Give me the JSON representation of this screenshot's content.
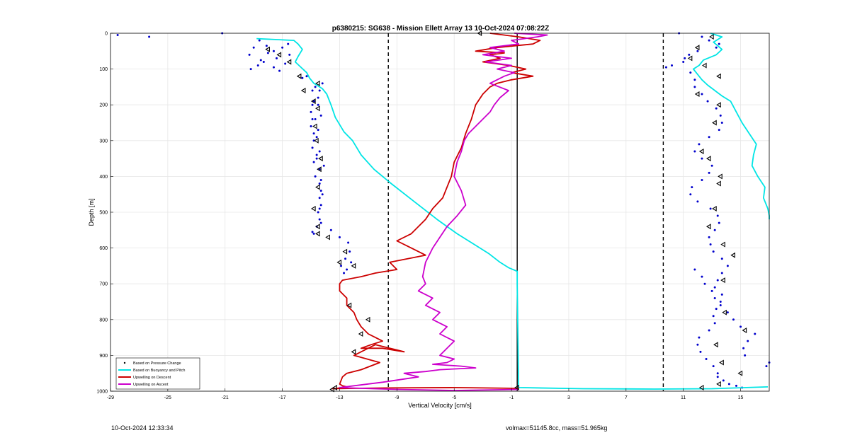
{
  "footer": {
    "timestamp": "10-Oct-2024 12:33:34",
    "vol_mass": "volmax=51145.8cc, mass=51.965kg"
  },
  "chart_data": {
    "type": "line",
    "title": "p6380215: SG638 - Mission Ellett Array 13 10-Oct-2024 07:08:22Z",
    "xlabel": "Vertical Velocity [cm/s]",
    "ylabel": "Depth [m]",
    "xlim": [
      -29,
      17
    ],
    "ylim": [
      0,
      1000
    ],
    "y_reversed": true,
    "grid": true,
    "xticks": [
      -29,
      -25,
      -21,
      -17,
      -13,
      -9,
      -5,
      -1,
      3,
      7,
      11,
      15
    ],
    "yticks": [
      0,
      100,
      200,
      300,
      400,
      500,
      600,
      700,
      800,
      900,
      1000
    ],
    "legend_position": "bottom-left",
    "vlines": [
      {
        "x": -9.6,
        "style": "dashed",
        "color": "#000000"
      },
      {
        "x": -0.6,
        "style": "solid",
        "color": "#000000"
      },
      {
        "x": 9.6,
        "style": "dashed",
        "color": "#000000"
      }
    ],
    "series": [
      {
        "name": "Based on Pressure Change",
        "kind": "markers",
        "color": "#0000cc",
        "groups": [
          {
            "x": [
              -28.5,
              -26.3,
              -21.2,
              -18.6,
              -19.0,
              -19.3,
              -18.5,
              -18.7,
              -19.2,
              -18.1,
              -18.0,
              -18.3,
              -17.6,
              -17.4,
              -17.6,
              -17.0,
              -16.5,
              -16.8,
              -17.2,
              -16.6,
              -15.6,
              -15.3,
              -14.7,
              -14.2,
              -14.4,
              -14.8,
              -14.5,
              -14.9,
              -15.0,
              -14.9,
              -15.0,
              -14.8,
              -14.8,
              -14.9,
              -14.6,
              -14.8,
              -14.4,
              -14.7,
              -14.4,
              -14.3,
              -14.4,
              -14.3,
              -14.5,
              -14.4,
              -14.6,
              -14.9,
              -14.5,
              -14.9,
              -14.7,
              -14.6,
              -14.4,
              -14.1,
              -14.3,
              -14.2,
              -14.4,
              -14.3,
              -14.3,
              -14.5,
              -14.6,
              -14.8,
              -13.6,
              -13.0,
              -12.4,
              -12.3,
              -12.6,
              -12.2,
              -12.9,
              -12.5,
              -12.7
            ],
            "y": [
              5,
              10,
              0,
              20,
              40,
              60,
              75,
              90,
              100,
              35,
              55,
              80,
              95,
              70,
              50,
              40,
              60,
              85,
              105,
              30,
              125,
              120,
              150,
              140,
              160,
              190,
              180,
              200,
              220,
              240,
              260,
              280,
              300,
              320,
              340,
              360,
              380,
              400,
              420,
              440,
              460,
              480,
              500,
              520,
              540,
              555,
              200,
              160,
              240,
              290,
              330,
              370,
              410,
              450,
              490,
              530,
              230,
              270,
              350,
              560,
              550,
              570,
              585,
              610,
              630,
              640,
              650,
              660,
              670
            ]
          }
        ]
      },
      {
        "name": "Pressure Change Right",
        "kind": "markers",
        "color": "#0000cc",
        "legend": false,
        "groups": [
          {
            "x": [
              10.7,
              12.3,
              12.8,
              13.5,
              13.3,
              12.0,
              11.4,
              11.1,
              11.0,
              10.2,
              9.8,
              11.5,
              11.8,
              11.8,
              12.3,
              12.7,
              13.3,
              13.6,
              13.7,
              13.5,
              12.8,
              12.1,
              11.8,
              12.3,
              13.0,
              12.8,
              12.3,
              11.6,
              11.5,
              12.0,
              12.9,
              13.4,
              13.5,
              13.2,
              12.8,
              12.9,
              13.1,
              13.7,
              14.1,
              13.7,
              13.4,
              13.2,
              13.7,
              13.6,
              13.3,
              13.1,
              13.2,
              12.8,
              12.1,
              12.0,
              12.2,
              12.6,
              13.1,
              13.4,
              13.4,
              13.8,
              14.2,
              14.7,
              15.1,
              15.3,
              15.2,
              15.5,
              16.0,
              15.0,
              14.5,
              14.1,
              13.6,
              13.2,
              13.0,
              12.5,
              12.3,
              11.8,
              16.8,
              17.0
            ],
            "y": [
              0,
              10,
              20,
              30,
              40,
              50,
              60,
              70,
              80,
              90,
              95,
              110,
              130,
              150,
              170,
              190,
              210,
              230,
              250,
              270,
              290,
              310,
              330,
              350,
              370,
              390,
              410,
              430,
              450,
              470,
              490,
              510,
              530,
              550,
              570,
              590,
              610,
              630,
              650,
              670,
              690,
              710,
              730,
              750,
              770,
              790,
              810,
              830,
              850,
              870,
              890,
              910,
              930,
              950,
              960,
              970,
              980,
              985,
              990,
              900,
              880,
              860,
              840,
              820,
              800,
              780,
              760,
              740,
              720,
              700,
              680,
              660,
              930,
              920
            ]
          }
        ]
      },
      {
        "name": "Based on Buoyancy and Pitch",
        "kind": "line",
        "color": "#00e5e5",
        "groups": [
          {
            "x": [
              -18.8,
              -16.2,
              -15.9,
              -15.6,
              -15.9,
              -16.1,
              -15.7,
              -15.3,
              -15.1,
              -14.8,
              -14.2,
              -13.9,
              -13.6,
              -13.3,
              -12.7,
              -12.1,
              -11.5,
              -10.6,
              -9.4,
              -7.8,
              -6.2,
              -4.8,
              -3.6,
              -2.6,
              -1.8,
              -1.2,
              -0.6,
              -0.6,
              -0.6,
              -0.5,
              4.0,
              9.0,
              13.0,
              16.9
            ],
            "y": [
              15,
              20,
              30,
              45,
              65,
              80,
              95,
              110,
              125,
              140,
              155,
              170,
              200,
              235,
              275,
              300,
              340,
              380,
              420,
              470,
              520,
              560,
              590,
              615,
              640,
              655,
              665,
              672,
              700,
              990,
              993,
              994,
              993,
              988
            ]
          },
          {
            "x": [
              12.9,
              13.7,
              13.1,
              13.7,
              13.3,
              12.4,
              12.1,
              11.7,
              12.0,
              12.3,
              12.7,
              13.2,
              13.7,
              14.3,
              14.7,
              15.1,
              15.6,
              16.1,
              15.9,
              15.8,
              16.2,
              16.7,
              16.6,
              16.9,
              17.0,
              17.0
            ],
            "y": [
              0,
              10,
              25,
              45,
              60,
              75,
              90,
              100,
              115,
              130,
              145,
              160,
              175,
              190,
              220,
              250,
              280,
              310,
              340,
              370,
              400,
              430,
              460,
              490,
              510,
              520
            ]
          }
        ]
      },
      {
        "name": "Upwelling on Descent",
        "kind": "line",
        "color": "#cc0000",
        "groups": [
          {
            "x": [
              -2.5,
              -0.5,
              1.0,
              0.5,
              -2.0,
              -3.5,
              -1.5,
              -2.5,
              -1.8,
              -3.0,
              -1.2,
              0.0,
              -1.0,
              0.5,
              -1.0,
              -2.0,
              -2.5,
              -3.0,
              -3.5,
              -3.8,
              -4.2,
              -4.5,
              -5.0,
              -5.2,
              -5.5,
              -5.8,
              -6.5,
              -7.0,
              -7.5,
              -8.0,
              -9.0,
              -8.0,
              -7.0,
              -9.5,
              -9.0,
              -10.5,
              -11.5,
              -12.8,
              -13.0,
              -13.0,
              -12.5,
              -12.5,
              -12.0,
              -11.8,
              -11.5,
              -11.0,
              -10.5,
              -10.0,
              -10.8,
              -11.5,
              -10.0,
              -8.5,
              -10.5,
              -12.0,
              -10.2,
              -11.5,
              -12.5,
              -12.8,
              -13.0,
              -12.8,
              -12.5,
              -12.8,
              -13.2,
              -13.5,
              -12.0,
              -9.5,
              -5.0,
              -0.5
            ],
            "y": [
              0,
              10,
              20,
              30,
              40,
              50,
              55,
              60,
              70,
              80,
              90,
              100,
              110,
              120,
              130,
              140,
              150,
              170,
              200,
              240,
              280,
              320,
              360,
              400,
              430,
              460,
              490,
              520,
              540,
              560,
              580,
              600,
              620,
              640,
              660,
              670,
              680,
              690,
              700,
              720,
              740,
              760,
              780,
              800,
              820,
              840,
              850,
              860,
              870,
              880,
              880,
              890,
              870,
              900,
              920,
              940,
              950,
              960,
              980,
              985,
              988,
              990,
              992,
              993,
              992,
              991,
              990,
              992
            ]
          }
        ]
      },
      {
        "name": "Upwelling on Ascent",
        "kind": "line",
        "color": "#cc00cc",
        "groups": [
          {
            "x": [
              -0.8,
              1.5,
              0.8,
              -1.0,
              -0.5,
              -2.5,
              -1.5,
              -3.0,
              -1.0,
              -2.8,
              -1.0,
              -2.0,
              -0.8,
              -1.5,
              -2.5,
              -1.2,
              -1.8,
              -2.2,
              -2.5,
              -3.0,
              -3.5,
              -4.0,
              -4.3,
              -4.5,
              -4.8,
              -5.0,
              -4.5,
              -4.2,
              -4.8,
              -5.5,
              -6.0,
              -6.5,
              -7.0,
              -7.2,
              -7.0,
              -7.5,
              -6.5,
              -7.0,
              -6.0,
              -6.5,
              -5.5,
              -6.0,
              -5.0,
              -5.5,
              -6.0,
              -5.0,
              -5.5,
              -6.5,
              -4.5,
              -3.5,
              -6.0,
              -7.0,
              -8.5,
              -7.5,
              -10.0,
              -13.0,
              -9.0,
              -5.0,
              -0.5
            ],
            "y": [
              0,
              5,
              10,
              20,
              30,
              40,
              50,
              60,
              70,
              80,
              90,
              100,
              110,
              120,
              140,
              160,
              180,
              200,
              220,
              240,
              260,
              280,
              300,
              330,
              360,
              400,
              440,
              480,
              510,
              540,
              570,
              600,
              640,
              680,
              700,
              720,
              740,
              760,
              780,
              800,
              820,
              840,
              860,
              880,
              900,
              910,
              920,
              925,
              930,
              935,
              940,
              945,
              950,
              960,
              975,
              990,
              995,
              998,
              995
            ]
          }
        ]
      },
      {
        "name": "Descent/Ascent Markers",
        "kind": "triangles",
        "color": "#000000",
        "legend": false,
        "groups": [
          {
            "x": [
              -18.0,
              -17.2,
              -16.5,
              -15.8,
              -14.5,
              -15.5,
              -14.8,
              -14.5,
              -14.7,
              -14.6,
              -14.3,
              -14.4,
              -14.5,
              -14.8,
              -14.5,
              -14.5,
              -13.8,
              -12.6,
              -12.0,
              -13.0,
              -12.3,
              -11.0,
              -11.5,
              -12.0,
              -13.3
            ],
            "y": [
              45,
              60,
              80,
              120,
              140,
              160,
              190,
              210,
              260,
              300,
              350,
              380,
              430,
              490,
              540,
              560,
              570,
              610,
              650,
              640,
              760,
              800,
              840,
              890,
              990
            ]
          },
          {
            "x": [
              -3.2,
              13.0,
              12.0,
              11.5,
              12.5,
              13.5,
              12.0,
              13.5,
              13.2,
              12.3,
              12.8,
              13.6,
              13.5,
              13.2,
              12.8,
              13.8,
              14.5,
              13.8,
              13.9,
              15.3,
              13.3,
              13.7,
              15.0,
              13.5,
              12.3,
              -0.6,
              -13.5
            ],
            "y": [
              0,
              10,
              40,
              70,
              90,
              120,
              170,
              200,
              250,
              330,
              350,
              400,
              420,
              490,
              540,
              590,
              620,
              690,
              780,
              830,
              870,
              920,
              950,
              980,
              990,
              990,
              995
            ]
          }
        ]
      }
    ]
  }
}
